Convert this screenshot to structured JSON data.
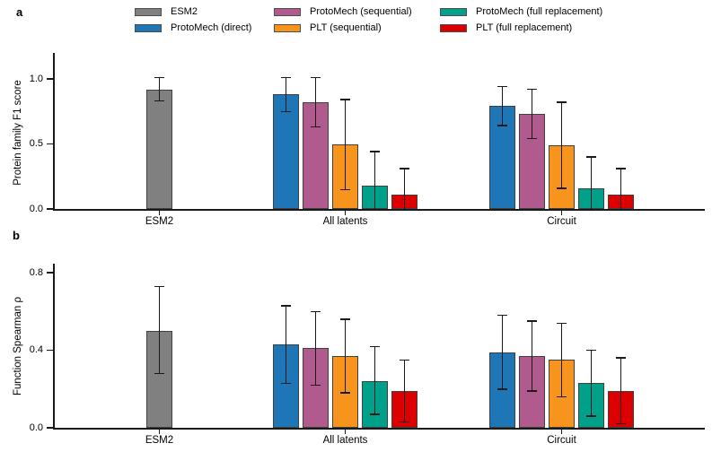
{
  "figure": {
    "background": "#ffffff",
    "axis_color": "#1a1a1a",
    "bar_edge_color": "#404040"
  },
  "series": [
    {
      "name": "ESM2",
      "color": "#808080"
    },
    {
      "name": "ProtoMech (direct)",
      "color": "#1e76b6"
    },
    {
      "name": "ProtoMech (sequential)",
      "color": "#b05a8e"
    },
    {
      "name": "PLT (sequential)",
      "color": "#f7941e"
    },
    {
      "name": "ProtoMech (full replacement)",
      "color": "#00a08a"
    },
    {
      "name": "PLT (full replacement)",
      "color": "#dd0000"
    }
  ],
  "legend": {
    "position": "top",
    "columns": 3,
    "rows": 2
  },
  "chart_data": [
    {
      "id": "panel-a",
      "panel_letter": "a",
      "type": "bar",
      "title": "",
      "xlabel": "",
      "ylabel": "Protein family F1 score",
      "ylim": [
        0,
        1.2
      ],
      "yticks": [
        {
          "value": 0.0,
          "label": "0.0"
        },
        {
          "value": 0.5,
          "label": "0.5"
        },
        {
          "value": 1.0,
          "label": "1.0"
        }
      ],
      "grid": false,
      "categories": [
        "ESM2",
        "All latents",
        "Circuit"
      ],
      "groups": [
        {
          "category": "ESM2",
          "bars": [
            {
              "series": "ESM2",
              "value": 0.92,
              "err_lo": 0.83,
              "err_hi": 1.01
            }
          ]
        },
        {
          "category": "All latents",
          "bars": [
            {
              "series": "ProtoMech (direct)",
              "value": 0.88,
              "err_lo": 0.75,
              "err_hi": 1.01
            },
            {
              "series": "ProtoMech (sequential)",
              "value": 0.82,
              "err_lo": 0.63,
              "err_hi": 1.01
            },
            {
              "series": "PLT (sequential)",
              "value": 0.5,
              "err_lo": 0.15,
              "err_hi": 0.84
            },
            {
              "series": "ProtoMech (full replacement)",
              "value": 0.18,
              "err_lo": 0.0,
              "err_hi": 0.44
            },
            {
              "series": "PLT (full replacement)",
              "value": 0.11,
              "err_lo": 0.0,
              "err_hi": 0.31
            }
          ]
        },
        {
          "category": "Circuit",
          "bars": [
            {
              "series": "ProtoMech (direct)",
              "value": 0.79,
              "err_lo": 0.64,
              "err_hi": 0.94
            },
            {
              "series": "ProtoMech (sequential)",
              "value": 0.73,
              "err_lo": 0.54,
              "err_hi": 0.92
            },
            {
              "series": "PLT (sequential)",
              "value": 0.49,
              "err_lo": 0.16,
              "err_hi": 0.82
            },
            {
              "series": "ProtoMech (full replacement)",
              "value": 0.16,
              "err_lo": 0.0,
              "err_hi": 0.4
            },
            {
              "series": "PLT (full replacement)",
              "value": 0.11,
              "err_lo": 0.0,
              "err_hi": 0.31
            }
          ]
        }
      ]
    },
    {
      "id": "panel-b",
      "panel_letter": "b",
      "type": "bar",
      "title": "",
      "xlabel": "",
      "ylabel": "Function Spearman ρ",
      "ylim": [
        0,
        0.85
      ],
      "yticks": [
        {
          "value": 0.0,
          "label": "0.0"
        },
        {
          "value": 0.4,
          "label": "0.4"
        },
        {
          "value": 0.8,
          "label": "0.8"
        }
      ],
      "grid": false,
      "categories": [
        "ESM2",
        "All latents",
        "Circuit"
      ],
      "groups": [
        {
          "category": "ESM2",
          "bars": [
            {
              "series": "ESM2",
              "value": 0.5,
              "err_lo": 0.28,
              "err_hi": 0.73
            }
          ]
        },
        {
          "category": "All latents",
          "bars": [
            {
              "series": "ProtoMech (direct)",
              "value": 0.43,
              "err_lo": 0.23,
              "err_hi": 0.63
            },
            {
              "series": "ProtoMech (sequential)",
              "value": 0.41,
              "err_lo": 0.22,
              "err_hi": 0.6
            },
            {
              "series": "PLT (sequential)",
              "value": 0.37,
              "err_lo": 0.18,
              "err_hi": 0.56
            },
            {
              "series": "ProtoMech (full replacement)",
              "value": 0.24,
              "err_lo": 0.07,
              "err_hi": 0.42
            },
            {
              "series": "PLT (full replacement)",
              "value": 0.19,
              "err_lo": 0.03,
              "err_hi": 0.35
            }
          ]
        },
        {
          "category": "Circuit",
          "bars": [
            {
              "series": "ProtoMech (direct)",
              "value": 0.39,
              "err_lo": 0.2,
              "err_hi": 0.58
            },
            {
              "series": "ProtoMech (sequential)",
              "value": 0.37,
              "err_lo": 0.19,
              "err_hi": 0.55
            },
            {
              "series": "PLT (sequential)",
              "value": 0.35,
              "err_lo": 0.16,
              "err_hi": 0.54
            },
            {
              "series": "ProtoMech (full replacement)",
              "value": 0.23,
              "err_lo": 0.06,
              "err_hi": 0.4
            },
            {
              "series": "PLT (full replacement)",
              "value": 0.19,
              "err_lo": 0.02,
              "err_hi": 0.36
            }
          ]
        }
      ]
    }
  ]
}
